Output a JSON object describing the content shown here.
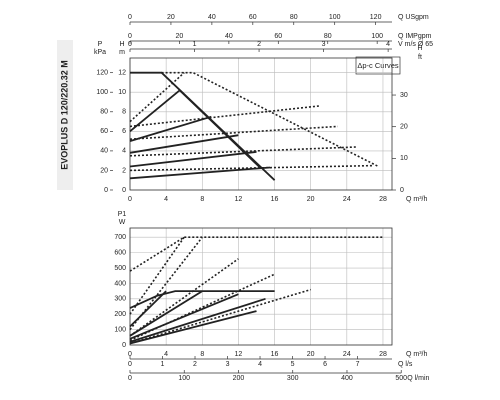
{
  "chart_data": [
    {
      "type": "line",
      "title": "EVOPLUS D 120/220.32 M",
      "legend_text": "Δp-c Curves",
      "xlabel": "Q m³/h",
      "xlim": [
        0,
        29
      ],
      "xticks": [
        0,
        4,
        8,
        12,
        16,
        20,
        24,
        28
      ],
      "ylabel": [
        "H",
        "m"
      ],
      "ylim": [
        0,
        13.5
      ],
      "yticks": [
        0,
        2,
        4,
        6,
        8,
        10,
        12
      ],
      "y2label": [
        "H",
        "ft"
      ],
      "y2lim": [
        0,
        41.7
      ],
      "y2ticks": [
        0,
        10,
        20,
        30
      ],
      "p_axis": {
        "label": [
          "P",
          "kPa"
        ],
        "lim": [
          0,
          135
        ],
        "ticks": [
          0,
          20,
          40,
          60,
          80,
          100,
          120
        ]
      },
      "extra_x_axes": [
        {
          "label": "Q USgpm",
          "lim": [
            0,
            128
          ],
          "ticks": [
            0,
            20,
            40,
            60,
            80,
            100,
            120
          ]
        },
        {
          "label": "Q IMPgpm",
          "lim": [
            0,
            106
          ],
          "ticks": [
            0,
            20,
            40,
            60,
            80,
            100
          ]
        },
        {
          "label": "V m/s Ø 65",
          "lim": [
            0,
            4.06
          ],
          "ticks": [
            0,
            1,
            2,
            3,
            4
          ]
        }
      ],
      "grid": true,
      "series": [
        {
          "color": "#222",
          "dash": false,
          "x": [
            0,
            3.5,
            16
          ],
          "values": [
            12,
            12,
            1
          ]
        },
        {
          "color": "#222",
          "dash": false,
          "x": [
            0,
            5.5,
            14.5
          ],
          "values": [
            6,
            10.2,
            2.2
          ]
        },
        {
          "color": "#222",
          "dash": false,
          "x": [
            0,
            9
          ],
          "values": [
            5,
            7.5
          ]
        },
        {
          "color": "#222",
          "dash": false,
          "x": [
            0,
            12
          ],
          "values": [
            3.8,
            5.6
          ]
        },
        {
          "color": "#222",
          "dash": false,
          "x": [
            0,
            14
          ],
          "values": [
            2.4,
            3.9
          ]
        },
        {
          "color": "#222",
          "dash": false,
          "x": [
            0,
            15.5
          ],
          "values": [
            1.2,
            2.3
          ]
        },
        {
          "color": "#222",
          "dash": true,
          "x": [
            3.5,
            7,
            27.5
          ],
          "values": [
            12,
            12,
            2.4
          ]
        },
        {
          "color": "#222",
          "dash": true,
          "x": [
            0,
            6
          ],
          "values": [
            7,
            12
          ]
        },
        {
          "color": "#222",
          "dash": true,
          "x": [
            0,
            21
          ],
          "values": [
            6.5,
            8.6
          ]
        },
        {
          "color": "#222",
          "dash": true,
          "x": [
            0,
            23
          ],
          "values": [
            5.2,
            6.5
          ]
        },
        {
          "color": "#222",
          "dash": true,
          "x": [
            0,
            25
          ],
          "values": [
            3.5,
            4.4
          ]
        },
        {
          "color": "#222",
          "dash": true,
          "x": [
            0,
            27
          ],
          "values": [
            2,
            2.5
          ]
        }
      ]
    },
    {
      "type": "line",
      "xlabel": "Q m³/h",
      "xlim": [
        0,
        29
      ],
      "xticks": [
        0,
        4,
        8,
        12,
        16,
        20,
        24,
        28
      ],
      "ylabel": [
        "P1",
        "W"
      ],
      "ylim": [
        0,
        760
      ],
      "yticks": [
        0,
        100,
        200,
        300,
        400,
        500,
        600,
        700
      ],
      "extra_x_axes": [
        {
          "label": "Q l/s",
          "lim": [
            0,
            8.06
          ],
          "ticks": [
            0,
            1,
            2,
            3,
            4,
            5,
            6,
            7
          ]
        },
        {
          "label": "Q l/min",
          "lim": [
            0,
            483
          ],
          "ticks": [
            0,
            100,
            200,
            300,
            400,
            500
          ]
        }
      ],
      "grid": true,
      "series": [
        {
          "color": "#222",
          "dash": false,
          "x": [
            0,
            3,
            5,
            16
          ],
          "values": [
            240,
            320,
            350,
            350
          ]
        },
        {
          "color": "#222",
          "dash": false,
          "x": [
            0,
            4
          ],
          "values": [
            120,
            350
          ]
        },
        {
          "color": "#222",
          "dash": false,
          "x": [
            0,
            8
          ],
          "values": [
            60,
            350
          ]
        },
        {
          "color": "#222",
          "dash": false,
          "x": [
            0,
            12
          ],
          "values": [
            40,
            330
          ]
        },
        {
          "color": "#222",
          "dash": false,
          "x": [
            0,
            15
          ],
          "values": [
            20,
            300
          ]
        },
        {
          "color": "#222",
          "dash": false,
          "x": [
            0,
            14
          ],
          "values": [
            10,
            220
          ]
        },
        {
          "color": "#222",
          "dash": true,
          "x": [
            0,
            6,
            28
          ],
          "values": [
            480,
            700,
            700
          ]
        },
        {
          "color": "#222",
          "dash": true,
          "x": [
            0,
            6
          ],
          "values": [
            200,
            700
          ]
        },
        {
          "color": "#222",
          "dash": true,
          "x": [
            0,
            8
          ],
          "values": [
            100,
            700
          ]
        },
        {
          "color": "#222",
          "dash": true,
          "x": [
            0,
            12
          ],
          "values": [
            60,
            560
          ]
        },
        {
          "color": "#222",
          "dash": true,
          "x": [
            0,
            16
          ],
          "values": [
            30,
            460
          ]
        },
        {
          "color": "#222",
          "dash": true,
          "x": [
            0,
            20
          ],
          "values": [
            10,
            360
          ]
        }
      ]
    }
  ]
}
